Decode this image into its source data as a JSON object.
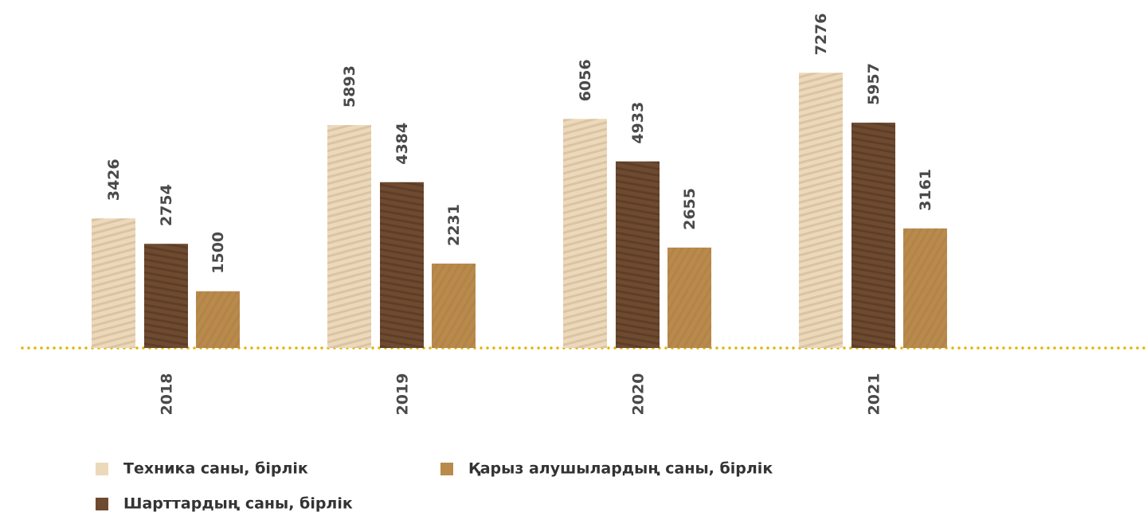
{
  "chart_data": {
    "type": "bar",
    "categories": [
      "2018",
      "2019",
      "2020",
      "2021"
    ],
    "series": [
      {
        "name": "Техника саны, бірлік",
        "color": "#ecd8ba",
        "values": [
          3426,
          5893,
          6056,
          7276
        ]
      },
      {
        "name": "Шарттардың саны, бірлік",
        "color": "#6e4a30",
        "values": [
          2754,
          4384,
          4933,
          5957
        ]
      },
      {
        "name": "Қарыз алушылардың саны, бірлік",
        "color": "#b98a4c",
        "values": [
          1500,
          2231,
          2655,
          3161
        ]
      }
    ]
  }
}
